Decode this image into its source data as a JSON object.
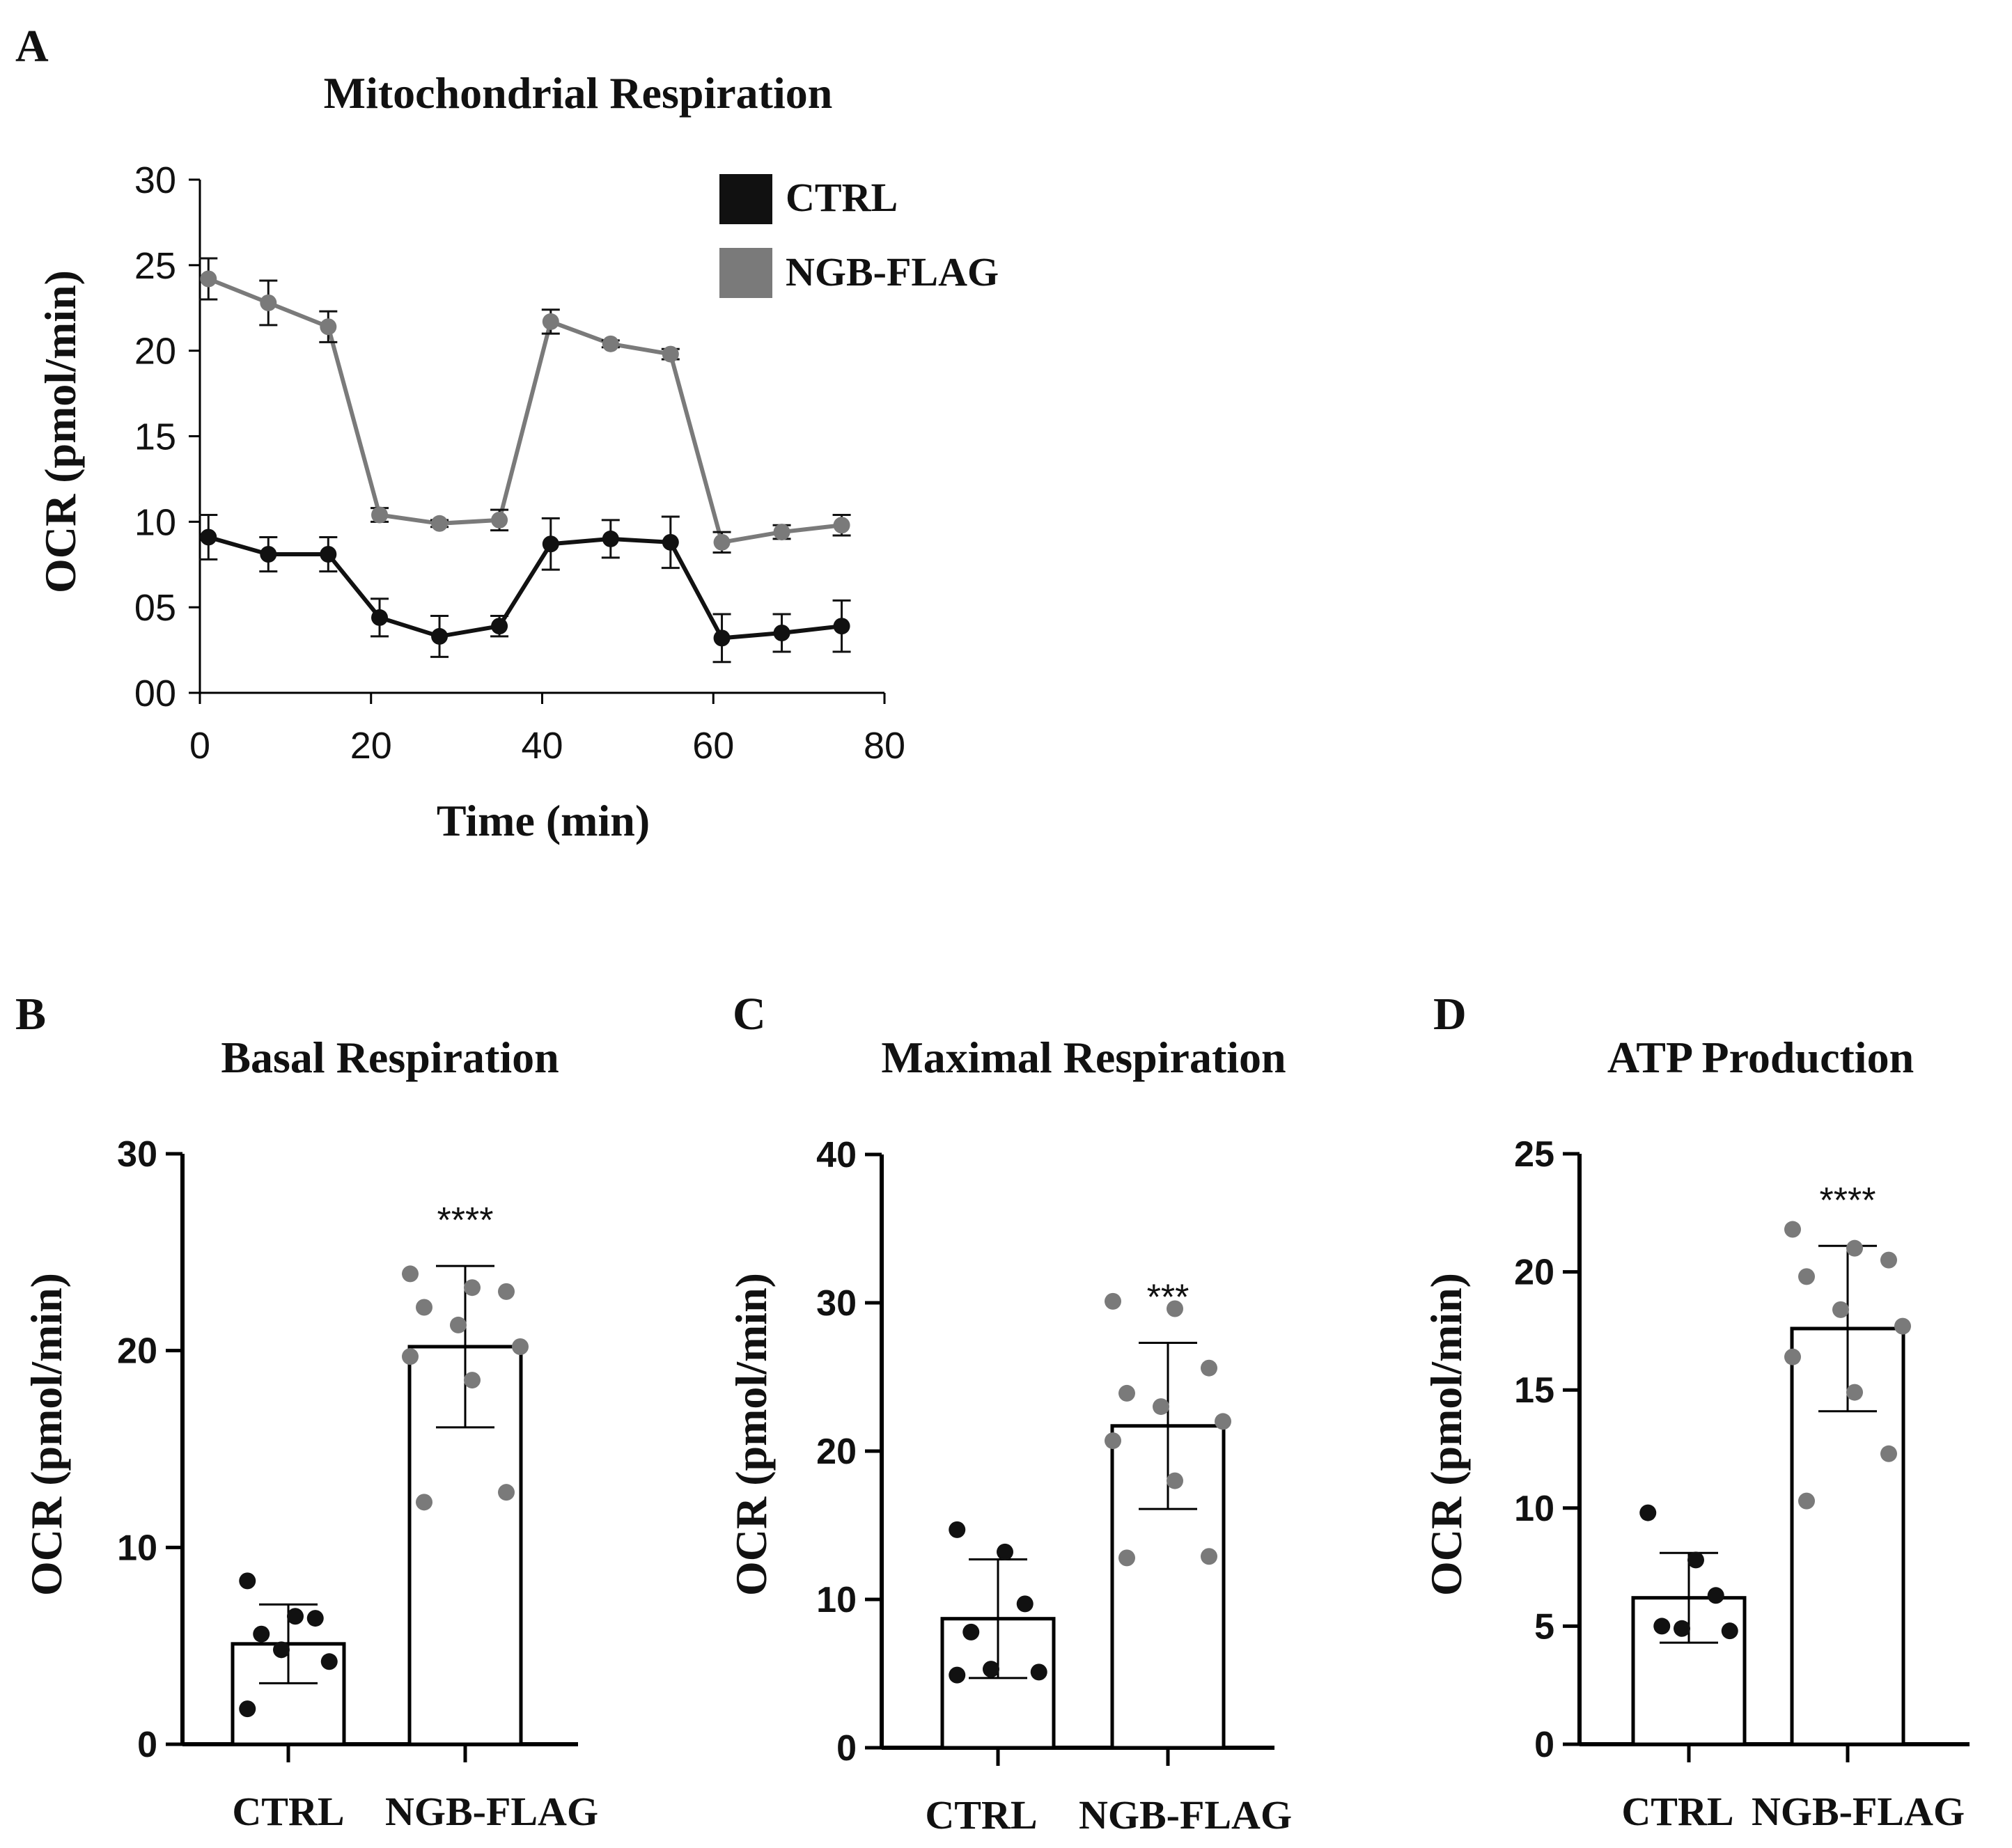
{
  "colors": {
    "ctrl": "#111111",
    "ngb": "#7a7a7a",
    "axis": "#000000",
    "bar_fill": "#ffffff"
  },
  "chart_data": [
    {
      "id": "A",
      "panel_label": "A",
      "type": "line",
      "title": "Mitochondrial Respiration",
      "xlabel": "Time (min)",
      "ylabel": "OCR (pmol/min)",
      "xlim": [
        0,
        80
      ],
      "ylim": [
        0,
        30
      ],
      "xticks": [
        0,
        20,
        40,
        60,
        80
      ],
      "xtick_labels": [
        "0",
        "20",
        "40",
        "60",
        "80"
      ],
      "yticks": [
        0,
        5,
        10,
        15,
        20,
        25,
        30
      ],
      "ytick_labels": [
        "00",
        "05",
        "10",
        "15",
        "20",
        "25",
        "30"
      ],
      "legend_position": "top-right",
      "series": [
        {
          "name": "CTRL",
          "color": "#111111",
          "x": [
            1,
            8,
            15,
            21,
            28,
            35,
            41,
            48,
            55,
            61,
            68,
            75
          ],
          "y": [
            9.1,
            8.1,
            8.1,
            4.4,
            3.3,
            3.9,
            8.7,
            9.0,
            8.8,
            3.2,
            3.5,
            3.9
          ],
          "err": [
            1.3,
            1.0,
            1.0,
            1.1,
            1.2,
            0.6,
            1.5,
            1.1,
            1.5,
            1.4,
            1.1,
            1.5
          ]
        },
        {
          "name": "NGB-FLAG",
          "color": "#7a7a7a",
          "x": [
            1,
            8,
            15,
            21,
            28,
            35,
            41,
            48,
            55,
            61,
            68,
            75
          ],
          "y": [
            24.2,
            22.8,
            21.4,
            10.4,
            9.9,
            10.1,
            21.7,
            20.4,
            19.8,
            8.8,
            9.4,
            9.8
          ],
          "err": [
            1.2,
            1.3,
            0.9,
            0.4,
            0.2,
            0.6,
            0.7,
            0.2,
            0.3,
            0.6,
            0.4,
            0.6
          ]
        }
      ]
    },
    {
      "id": "B",
      "panel_label": "B",
      "type": "bar",
      "title": "Basal Respiration",
      "ylabel": "OCR (pmol/min)",
      "ylim": [
        0,
        30
      ],
      "yticks": [
        0,
        10,
        20,
        30
      ],
      "ytick_labels": [
        "0",
        "10",
        "20",
        "30"
      ],
      "categories": [
        "CTRL",
        "NGB-FLAG"
      ],
      "values": [
        5.1,
        20.2
      ],
      "err": [
        2.0,
        4.1
      ],
      "significance": [
        "",
        "****"
      ],
      "points": [
        [
          8.3,
          6.5,
          6.4,
          5.6,
          4.8,
          4.2,
          1.8
        ],
        [
          23.9,
          23.2,
          23.0,
          22.2,
          21.3,
          20.2,
          19.7,
          18.5,
          12.8,
          12.3
        ]
      ]
    },
    {
      "id": "C",
      "panel_label": "C",
      "type": "bar",
      "title": "Maximal Respiration",
      "ylabel": "OCR (pmol/min)",
      "ylim": [
        0,
        40
      ],
      "yticks": [
        0,
        10,
        20,
        30,
        40
      ],
      "ytick_labels": [
        "0",
        "10",
        "20",
        "30",
        "40"
      ],
      "categories": [
        "CTRL",
        "NGB-FLAG"
      ],
      "values": [
        8.7,
        21.7
      ],
      "err": [
        4.0,
        5.6
      ],
      "significance": [
        "",
        "***"
      ],
      "points": [
        [
          14.7,
          13.2,
          9.7,
          7.8,
          5.3,
          5.1,
          4.9
        ],
        [
          30.1,
          29.6,
          25.6,
          23.9,
          23.0,
          22.0,
          20.7,
          18.0,
          12.9,
          12.8
        ]
      ]
    },
    {
      "id": "D",
      "panel_label": "D",
      "type": "bar",
      "title": "ATP Production",
      "ylabel": "OCR (pmol/min)",
      "ylim": [
        0,
        25
      ],
      "yticks": [
        0,
        5,
        10,
        15,
        20,
        25
      ],
      "ytick_labels": [
        "0",
        "5",
        "10",
        "15",
        "20",
        "25"
      ],
      "categories": [
        "CTRL",
        "NGB-FLAG"
      ],
      "values": [
        6.2,
        17.6
      ],
      "err": [
        1.9,
        3.5
      ],
      "significance": [
        "",
        "****"
      ],
      "points": [
        [
          9.8,
          7.8,
          6.3,
          5.0,
          4.9,
          4.8
        ],
        [
          21.8,
          21.0,
          20.5,
          19.8,
          18.4,
          17.7,
          16.4,
          14.9,
          12.3,
          10.3
        ]
      ]
    }
  ]
}
